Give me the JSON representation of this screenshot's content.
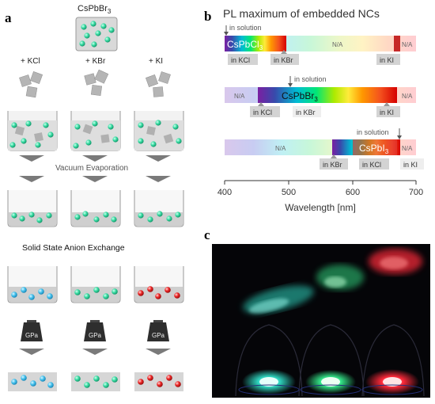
{
  "panels": {
    "a": {
      "letter": "a",
      "start_label": "CsPbBr",
      "start_sub": "3",
      "additions": [
        "+ KCl",
        "+ KBr",
        "+ KI"
      ],
      "step_vacuum": "Vacuum Evaporation",
      "step_exchange": "Solid State Anion Exchange",
      "weight_label": "GPa"
    },
    "b": {
      "letter": "b",
      "title": "PL maximum of embedded NCs",
      "in_solution": "in solution",
      "na": "N/A",
      "rows": [
        {
          "compound": "CsPbCl",
          "sub": "3",
          "labels": [
            "in KCl",
            "in KBr",
            "in KI"
          ]
        },
        {
          "compound": "CsPbBr",
          "sub": "3",
          "labels": [
            "in KCl",
            "in KBr",
            "in KI"
          ]
        },
        {
          "compound": "CsPbI",
          "sub": "3",
          "labels": [
            "in KBr",
            "in KCl",
            "in KI"
          ]
        }
      ],
      "axis": {
        "xlabel": "Wavelength [nm]",
        "ticks": [
          "400",
          "500",
          "600",
          "700"
        ]
      }
    },
    "c": {
      "letter": "c",
      "photo_colors": [
        "#2fd6c0",
        "#35e88a",
        "#ff2a3a"
      ]
    }
  }
}
